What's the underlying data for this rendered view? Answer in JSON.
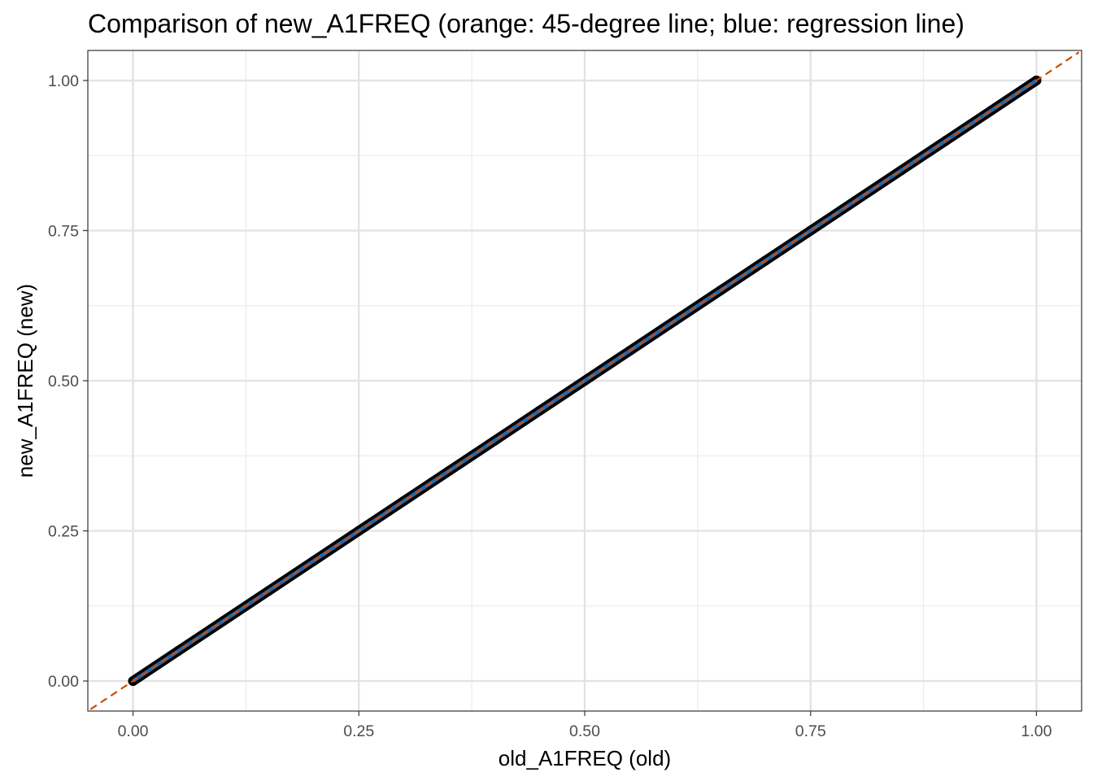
{
  "chart_data": {
    "type": "scatter",
    "title": "Comparison of new_A1FREQ (orange: 45-degree line; blue: regression line)",
    "xlabel": "old_A1FREQ (old)",
    "ylabel": "new_A1FREQ (new)",
    "xlim": [
      -0.05,
      1.05
    ],
    "ylim": [
      -0.05,
      1.05
    ],
    "x_ticks": [
      0.0,
      0.25,
      0.5,
      0.75,
      1.0
    ],
    "y_ticks": [
      0.0,
      0.25,
      0.5,
      0.75,
      1.0
    ],
    "x_tick_labels": [
      "0.00",
      "0.25",
      "0.50",
      "0.75",
      "1.00"
    ],
    "y_tick_labels": [
      "0.00",
      "0.25",
      "0.50",
      "0.75",
      "1.00"
    ],
    "grid": true,
    "points": {
      "color": "#000000",
      "x": [
        0.0,
        0.05,
        0.1,
        0.15,
        0.2,
        0.25,
        0.3,
        0.35,
        0.4,
        0.45,
        0.5,
        0.55,
        0.6,
        0.65,
        0.7,
        0.75,
        0.8,
        0.85,
        0.9,
        0.95,
        1.0
      ],
      "y": [
        0.0,
        0.05,
        0.1,
        0.15,
        0.2,
        0.25,
        0.3,
        0.35,
        0.4,
        0.45,
        0.5,
        0.55,
        0.6,
        0.65,
        0.7,
        0.75,
        0.8,
        0.85,
        0.9,
        0.95,
        1.0
      ]
    },
    "reference_line": {
      "slope": 1,
      "intercept": 0,
      "color": "#cc4c02",
      "style": "dashed"
    },
    "regression_line": {
      "slope": 1,
      "intercept": 0,
      "x_range": [
        0.0,
        1.0
      ],
      "color": "#2166ac"
    }
  }
}
